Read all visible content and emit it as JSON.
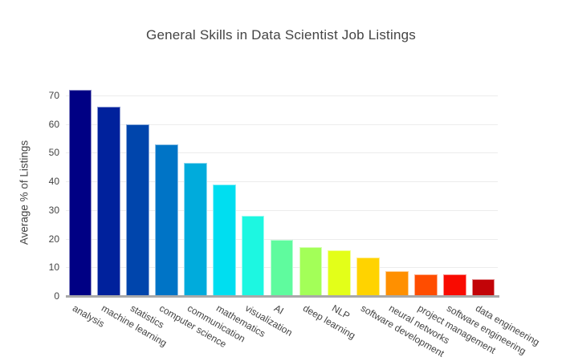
{
  "chart_data": {
    "type": "bar",
    "title": "General Skills in Data Scientist Job Listings",
    "xlabel": "",
    "ylabel": "Average % of Listings",
    "categories": [
      "analysis",
      "machine learning",
      "statistics",
      "computer science",
      "communication",
      "mathematics",
      "visualization",
      "AI",
      "deep learning",
      "NLP",
      "software development",
      "neural networks",
      "project management",
      "software engineering",
      "data engineering"
    ],
    "values": [
      72,
      66,
      60,
      53,
      46.5,
      39,
      28,
      19.7,
      17,
      16,
      13.5,
      8.8,
      7.7,
      7.6,
      6
    ],
    "bar_colors": [
      "#000084",
      "#00219c",
      "#0045ac",
      "#0074c6",
      "#00abdc",
      "#00def0",
      "#1df7e1",
      "#5ffb9e",
      "#a3ff58",
      "#e3ff19",
      "#ffd300",
      "#ff9000",
      "#ff4d00",
      "#f90b01",
      "#c20408"
    ],
    "ylim": [
      0,
      75
    ],
    "yticks": [
      0,
      10,
      20,
      30,
      40,
      50,
      60,
      70
    ],
    "grid": true,
    "legend": false,
    "colors": {
      "grid": "#ececec",
      "zeroline": "#a9a9a9",
      "text": "#444444",
      "background": "#ffffff"
    }
  }
}
